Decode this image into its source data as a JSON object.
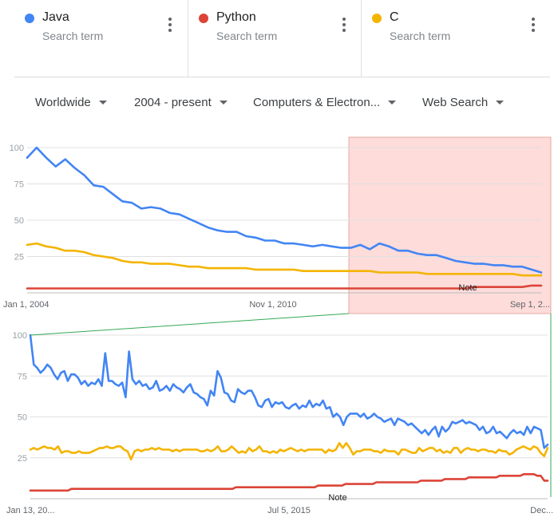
{
  "search_terms": [
    {
      "label": "Java",
      "sub": "Search term",
      "color": "#4285f4",
      "icon": "color-dot-icon"
    },
    {
      "label": "Python",
      "sub": "Search term",
      "color": "#db4437",
      "icon": "color-dot-icon"
    },
    {
      "label": "C",
      "sub": "Search term",
      "color": "#f4b400",
      "icon": "color-dot-icon"
    }
  ],
  "filters": {
    "region": "Worldwide",
    "time": "2004 - present",
    "category": "Computers & Electron...",
    "search_type": "Web Search"
  },
  "chart_data": [
    {
      "type": "line",
      "x_tick_labels": [
        "Jan 1, 2004",
        "Nov 1, 2010",
        "Sep 1, 2..."
      ],
      "ylim": [
        0,
        100
      ],
      "y_ticks": [
        25,
        50,
        75,
        100
      ],
      "grid": true,
      "annotation": "Note",
      "highlight_label": "zoom-region",
      "highlight_color": "#fddcda",
      "series": [
        {
          "name": "Java",
          "color": "#4285f4",
          "values": [
            93,
            100,
            93,
            87,
            92,
            86,
            81,
            74,
            73,
            68,
            63,
            62,
            58,
            59,
            58,
            55,
            54,
            51,
            48,
            45,
            43,
            42,
            42,
            39,
            38,
            36,
            36,
            34,
            34,
            33,
            32,
            33,
            32,
            31,
            31,
            33,
            30,
            34,
            32,
            29,
            29,
            27,
            26,
            26,
            24,
            22,
            21,
            20,
            20,
            19,
            19,
            18,
            18,
            16,
            14
          ]
        },
        {
          "name": "Python",
          "color": "#db4437",
          "values": [
            3,
            3,
            3,
            3,
            3,
            3,
            3,
            3,
            3,
            3,
            3,
            3,
            3,
            3,
            3,
            3,
            3,
            3,
            3,
            3,
            3,
            3,
            3,
            3,
            3,
            3,
            3,
            3,
            3,
            3,
            3,
            3,
            3,
            3,
            3,
            3,
            3,
            3,
            3,
            3,
            3,
            3,
            3,
            3,
            3,
            3,
            3,
            4,
            4,
            4,
            4,
            4,
            4,
            5,
            5
          ]
        },
        {
          "name": "C",
          "color": "#f4b400",
          "values": [
            33,
            34,
            32,
            31,
            29,
            29,
            28,
            26,
            25,
            24,
            22,
            21,
            21,
            20,
            20,
            20,
            19,
            18,
            18,
            17,
            17,
            17,
            17,
            17,
            16,
            16,
            16,
            16,
            16,
            15,
            15,
            15,
            15,
            15,
            15,
            15,
            15,
            14,
            14,
            14,
            14,
            14,
            13,
            13,
            13,
            13,
            13,
            13,
            13,
            13,
            13,
            13,
            12,
            12,
            12
          ]
        }
      ]
    },
    {
      "type": "line",
      "x_tick_labels": [
        "Jan 13, 20...",
        "Jul 5, 2015",
        "Dec..."
      ],
      "ylim": [
        0,
        100
      ],
      "y_ticks": [
        25,
        50,
        75,
        100
      ],
      "grid": true,
      "annotation": "Note",
      "series": [
        {
          "name": "Java",
          "color": "#4285f4",
          "values": [
            100,
            82,
            80,
            77,
            79,
            82,
            80,
            76,
            73,
            77,
            78,
            72,
            76,
            76,
            74,
            70,
            72,
            69,
            71,
            70,
            73,
            69,
            89,
            72,
            72,
            70,
            69,
            71,
            62,
            90,
            73,
            70,
            72,
            69,
            70,
            67,
            68,
            72,
            66,
            67,
            69,
            66,
            70,
            68,
            67,
            65,
            68,
            70,
            65,
            64,
            62,
            61,
            57,
            66,
            63,
            78,
            74,
            65,
            64,
            60,
            59,
            67,
            65,
            64,
            66,
            66,
            62,
            57,
            56,
            60,
            61,
            56,
            59,
            58,
            59,
            56,
            55,
            57,
            58,
            55,
            57,
            56,
            60,
            56,
            58,
            57,
            60,
            55,
            56,
            50,
            52,
            50,
            45,
            50,
            52,
            52,
            52,
            50,
            52,
            49,
            50,
            52,
            50,
            49,
            47,
            48,
            49,
            45,
            49,
            48,
            47,
            45,
            46,
            44,
            42,
            40,
            42,
            39,
            42,
            44,
            38,
            44,
            41,
            43,
            47,
            46,
            47,
            48,
            46,
            47,
            46,
            45,
            42,
            44,
            40,
            41,
            44,
            40,
            41,
            39,
            37,
            40,
            42,
            40,
            41,
            39,
            44,
            40,
            44,
            43,
            42,
            31,
            33
          ]
        },
        {
          "name": "Python",
          "color": "#db4437",
          "values": [
            5,
            5,
            5,
            5,
            5,
            5,
            5,
            5,
            5,
            5,
            5,
            5,
            6,
            6,
            6,
            6,
            6,
            6,
            6,
            6,
            6,
            6,
            6,
            6,
            6,
            6,
            6,
            6,
            6,
            6,
            6,
            6,
            6,
            6,
            6,
            6,
            6,
            6,
            6,
            6,
            6,
            6,
            6,
            6,
            6,
            6,
            6,
            6,
            6,
            6,
            6,
            6,
            6,
            6,
            6,
            6,
            6,
            6,
            6,
            6,
            7,
            7,
            7,
            7,
            7,
            7,
            7,
            7,
            7,
            7,
            7,
            7,
            7,
            7,
            7,
            7,
            7,
            7,
            7,
            7,
            7,
            7,
            7,
            7,
            8,
            8,
            8,
            8,
            8,
            8,
            8,
            8,
            9,
            9,
            9,
            9,
            9,
            9,
            9,
            9,
            9,
            10,
            10,
            10,
            10,
            10,
            10,
            10,
            10,
            10,
            10,
            10,
            10,
            10,
            11,
            11,
            11,
            11,
            11,
            11,
            11,
            12,
            12,
            12,
            12,
            12,
            12,
            12,
            13,
            13,
            13,
            13,
            13,
            13,
            13,
            13,
            13,
            14,
            14,
            14,
            14,
            14,
            14,
            14,
            15,
            15,
            15,
            15,
            14,
            14,
            11,
            11
          ]
        },
        {
          "name": "C",
          "color": "#f4b400",
          "values": [
            30,
            31,
            30,
            31,
            32,
            31,
            31,
            30,
            32,
            28,
            29,
            29,
            28,
            28,
            29,
            28,
            28,
            28,
            29,
            30,
            31,
            31,
            32,
            31,
            31,
            32,
            32,
            30,
            29,
            24,
            29,
            30,
            29,
            30,
            30,
            31,
            30,
            31,
            30,
            30,
            30,
            29,
            30,
            29,
            30,
            30,
            30,
            30,
            30,
            29,
            29,
            30,
            29,
            30,
            32,
            29,
            29,
            30,
            32,
            30,
            28,
            29,
            28,
            31,
            29,
            30,
            32,
            29,
            29,
            28,
            29,
            28,
            30,
            29,
            30,
            31,
            30,
            29,
            30,
            29,
            30,
            30,
            30,
            30,
            30,
            28,
            30,
            29,
            30,
            34,
            31,
            34,
            31,
            27,
            29,
            29,
            30,
            30,
            30,
            29,
            29,
            28,
            30,
            29,
            29,
            29,
            27,
            30,
            30,
            29,
            28,
            28,
            31,
            29,
            30,
            31,
            31,
            29,
            30,
            28,
            29,
            28,
            31,
            31,
            28,
            30,
            31,
            30,
            30,
            29,
            30,
            30,
            29,
            29,
            28,
            30,
            29,
            29,
            27,
            28,
            30,
            31,
            32,
            31,
            30,
            32,
            31,
            28,
            26,
            31
          ]
        }
      ]
    }
  ]
}
